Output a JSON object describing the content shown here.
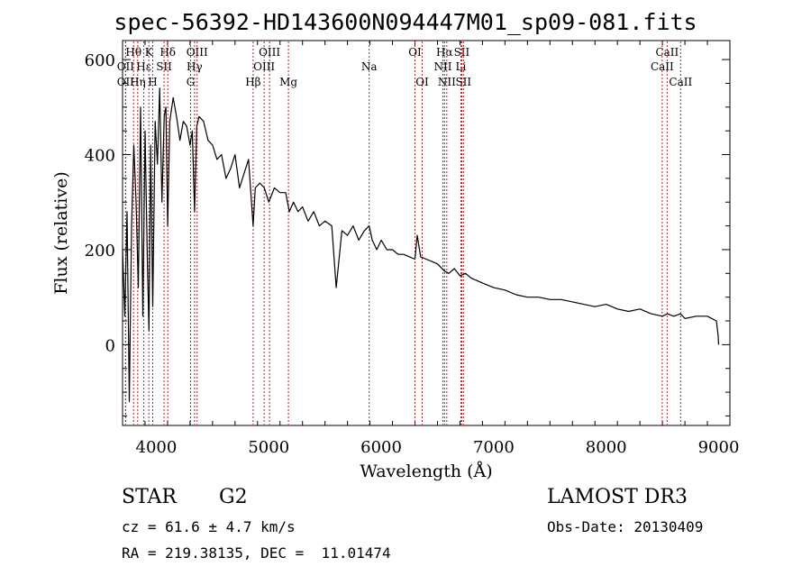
{
  "chart_data": {
    "type": "line",
    "title": "spec-56392-HD143600N094447M01_sp09-081.fits",
    "xlabel": "Wavelength (Å)",
    "ylabel": "Flux (relative)",
    "xlim": [
      3700,
      9100
    ],
    "ylim": [
      -170,
      640
    ],
    "xticks": [
      4000,
      5000,
      6000,
      7000,
      8000,
      9000
    ],
    "yticks": [
      0,
      200,
      400,
      600
    ],
    "series": [
      {
        "name": "flux",
        "x": [
          3700,
          3720,
          3740,
          3760,
          3780,
          3800,
          3820,
          3840,
          3860,
          3880,
          3900,
          3920,
          3935,
          3950,
          3968,
          3990,
          4010,
          4030,
          4050,
          4070,
          4085,
          4101,
          4120,
          4150,
          4180,
          4210,
          4240,
          4270,
          4300,
          4320,
          4340,
          4360,
          4380,
          4420,
          4460,
          4500,
          4540,
          4580,
          4620,
          4660,
          4700,
          4740,
          4780,
          4820,
          4861,
          4880,
          4920,
          4960,
          5000,
          5050,
          5100,
          5150,
          5183,
          5220,
          5260,
          5300,
          5350,
          5400,
          5450,
          5500,
          5560,
          5600,
          5650,
          5700,
          5750,
          5800,
          5850,
          5893,
          5920,
          5960,
          6000,
          6050,
          6100,
          6150,
          6200,
          6250,
          6300,
          6320,
          6350,
          6400,
          6450,
          6500,
          6563,
          6600,
          6650,
          6700,
          6750,
          6800,
          6900,
          7000,
          7100,
          7200,
          7300,
          7400,
          7500,
          7600,
          7700,
          7800,
          7900,
          8000,
          8100,
          8200,
          8300,
          8400,
          8500,
          8542,
          8600,
          8662,
          8700,
          8800,
          8900,
          8980,
          8995,
          9000
        ],
        "y": [
          200,
          60,
          280,
          -120,
          250,
          420,
          300,
          120,
          500,
          60,
          450,
          180,
          30,
          420,
          80,
          470,
          380,
          540,
          300,
          480,
          500,
          250,
          470,
          520,
          480,
          430,
          470,
          460,
          420,
          450,
          280,
          460,
          480,
          470,
          430,
          420,
          390,
          400,
          350,
          370,
          400,
          330,
          360,
          390,
          250,
          330,
          340,
          330,
          300,
          330,
          320,
          320,
          280,
          300,
          280,
          290,
          260,
          280,
          250,
          260,
          250,
          120,
          240,
          230,
          250,
          220,
          240,
          250,
          220,
          200,
          220,
          200,
          200,
          190,
          190,
          185,
          180,
          230,
          185,
          180,
          175,
          170,
          155,
          150,
          160,
          145,
          150,
          140,
          130,
          120,
          115,
          105,
          100,
          100,
          95,
          95,
          90,
          85,
          80,
          85,
          75,
          70,
          75,
          65,
          60,
          65,
          60,
          65,
          55,
          60,
          60,
          50,
          20,
          0
        ]
      }
    ],
    "lines": [
      {
        "label": "Hθ",
        "x": 3798,
        "row": 0
      },
      {
        "label": "OII",
        "x": 3727,
        "row": 1
      },
      {
        "label": "OII",
        "x": 3727,
        "row": 2
      },
      {
        "label": "Hη",
        "x": 3835,
        "row": 2
      },
      {
        "label": "Hε",
        "x": 3889,
        "row": 1
      },
      {
        "label": "K",
        "x": 3934,
        "row": 0
      },
      {
        "label": "H",
        "x": 3968,
        "row": 2
      },
      {
        "label": "SII",
        "x": 4069,
        "row": 1
      },
      {
        "label": "Hδ",
        "x": 4102,
        "row": 0
      },
      {
        "label": "OIII",
        "x": 4363,
        "row": 0
      },
      {
        "label": "Hγ",
        "x": 4340,
        "row": 1
      },
      {
        "label": "G",
        "x": 4305,
        "row": 2
      },
      {
        "label": "Hβ",
        "x": 4861,
        "row": 2
      },
      {
        "label": "OIII",
        "x": 5007,
        "row": 0
      },
      {
        "label": "OIII",
        "x": 4959,
        "row": 1
      },
      {
        "label": "Mg",
        "x": 5175,
        "row": 2
      },
      {
        "label": "Na",
        "x": 5893,
        "row": 1
      },
      {
        "label": "OI",
        "x": 6300,
        "row": 0
      },
      {
        "label": "OI",
        "x": 6364,
        "row": 2
      },
      {
        "label": "Hα",
        "x": 6563,
        "row": 0
      },
      {
        "label": "NII",
        "x": 6548,
        "row": 1
      },
      {
        "label": "NII",
        "x": 6583,
        "row": 2
      },
      {
        "label": "SII",
        "x": 6716,
        "row": 0
      },
      {
        "label": "Li",
        "x": 6708,
        "row": 1
      },
      {
        "label": "SII",
        "x": 6731,
        "row": 2
      },
      {
        "label": "CaII",
        "x": 8542,
        "row": 0
      },
      {
        "label": "CaII",
        "x": 8498,
        "row": 1
      },
      {
        "label": "CaII",
        "x": 8662,
        "row": 2
      }
    ],
    "line_color": "#b22222"
  },
  "info": {
    "object_class": "STAR",
    "subclass": "G2",
    "survey": "LAMOST DR3",
    "redshift_text": "cz = 61.6 ± 4.7 km/s",
    "obs_date_text": "Obs-Date: 20130409",
    "coords_text": "RA = 219.38135, DEC =  11.01474"
  }
}
